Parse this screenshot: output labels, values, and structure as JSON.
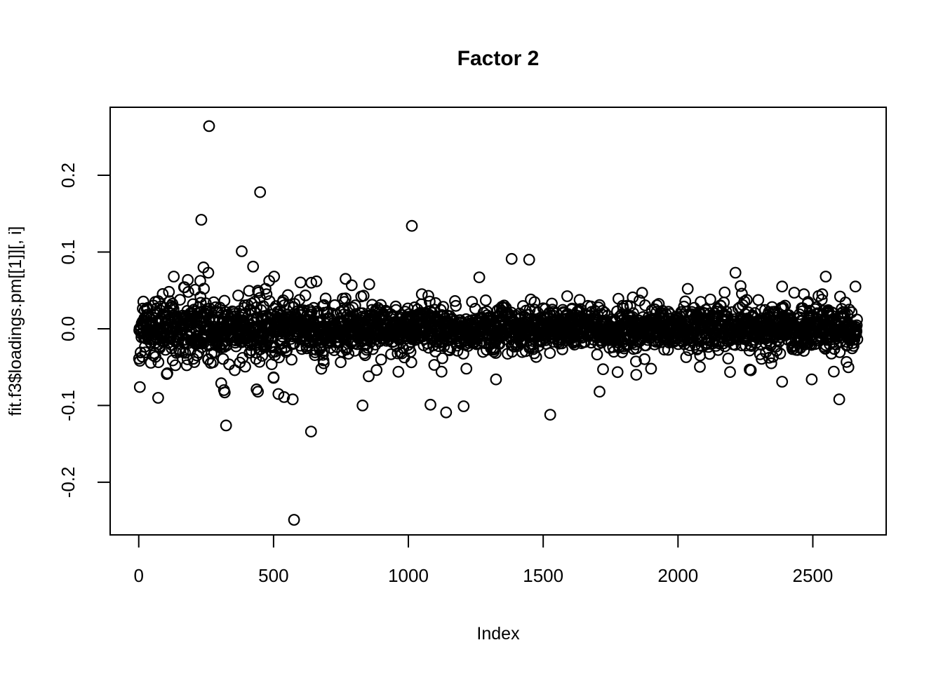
{
  "window": {
    "background": "#ffffff"
  },
  "chart_data": {
    "type": "scatter",
    "title": "Factor 2",
    "xlabel": "Index",
    "ylabel": "fit.f3$loadings.pm[[1]][, i]",
    "marker": "open-circle",
    "marker_color": "#000000",
    "background_color": "#ffffff",
    "grid": false,
    "legend": null,
    "xlim": [
      -106,
      2772
    ],
    "ylim": [
      -0.2686,
      0.2886
    ],
    "x_ticks": [
      0,
      500,
      1000,
      1500,
      2000,
      2500
    ],
    "x_tick_labels": [
      "0",
      "500",
      "1000",
      "1500",
      "2000",
      "2500"
    ],
    "y_ticks": [
      -0.2,
      -0.1,
      0.0,
      0.1,
      0.2
    ],
    "y_tick_labels": [
      "-0.2",
      "-0.1",
      "0.0",
      "0.1",
      "0.2"
    ],
    "n_points": 2665,
    "band": {
      "description": "dense index-vs-loading band around y=0; spread shrinks left to right",
      "seed": 42,
      "segments": [
        {
          "from": 1,
          "until": 520,
          "sd": 0.0205,
          "clip": 0.066
        },
        {
          "from": 521,
          "until": 900,
          "sd": 0.0165,
          "clip": 0.062
        },
        {
          "from": 901,
          "until": 2665,
          "sd": 0.0135,
          "clip": 0.058
        }
      ],
      "wide_fraction": 0.1,
      "wide_scale": 1.9
    },
    "outliers": [
      [
        261,
        0.264
      ],
      [
        450,
        0.178
      ],
      [
        232,
        0.142
      ],
      [
        1013,
        0.134
      ],
      [
        382,
        0.101
      ],
      [
        424,
        0.081
      ],
      [
        240,
        0.08
      ],
      [
        258,
        0.073
      ],
      [
        1383,
        0.091
      ],
      [
        1448,
        0.09
      ],
      [
        2213,
        0.073
      ],
      [
        130,
        0.068
      ],
      [
        502,
        0.068
      ],
      [
        2548,
        0.068
      ],
      [
        767,
        0.065
      ],
      [
        1263,
        0.067
      ],
      [
        2386,
        0.055
      ],
      [
        2658,
        0.055
      ],
      [
        2467,
        0.045
      ],
      [
        2535,
        0.045
      ],
      [
        2601,
        0.042
      ],
      [
        2036,
        0.052
      ],
      [
        640,
        0.06
      ],
      [
        855,
        0.058
      ],
      [
        576,
        -0.249
      ],
      [
        324,
        -0.126
      ],
      [
        639,
        -0.134
      ],
      [
        830,
        -0.1
      ],
      [
        1082,
        -0.099
      ],
      [
        1140,
        -0.109
      ],
      [
        1205,
        -0.101
      ],
      [
        1526,
        -0.112
      ],
      [
        1709,
        -0.082
      ],
      [
        2598,
        -0.092
      ],
      [
        4,
        -0.076
      ],
      [
        72,
        -0.09
      ],
      [
        106,
        -0.058
      ],
      [
        319,
        -0.083
      ],
      [
        442,
        -0.082
      ],
      [
        306,
        -0.071
      ],
      [
        316,
        -0.08
      ],
      [
        437,
        -0.079
      ],
      [
        500,
        -0.064
      ],
      [
        518,
        -0.085
      ],
      [
        539,
        -0.089
      ],
      [
        571,
        -0.092
      ],
      [
        1845,
        -0.06
      ],
      [
        1900,
        -0.052
      ],
      [
        1215,
        -0.052
      ],
      [
        1325,
        -0.066
      ],
      [
        2386,
        -0.069
      ],
      [
        2496,
        -0.066
      ],
      [
        2346,
        -0.045
      ],
      [
        2030,
        -0.037
      ],
      [
        853,
        -0.062
      ],
      [
        963,
        -0.056
      ]
    ]
  }
}
